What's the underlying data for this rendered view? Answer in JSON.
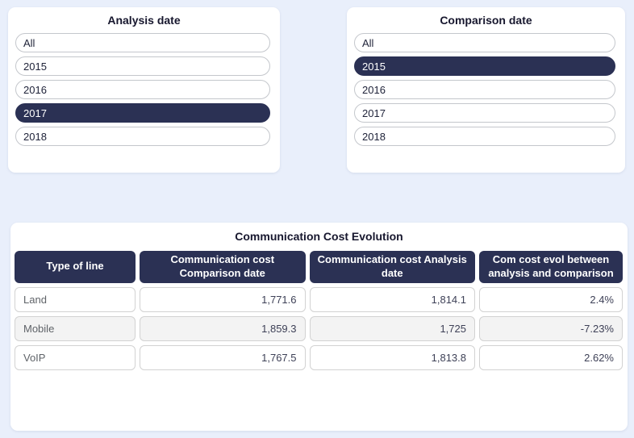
{
  "colors": {
    "page_background": "#e9effb",
    "card_background": "#ffffff",
    "accent_navy": "#2b3154",
    "selected_text": "#ffffff",
    "row_alt_background": "#f3f3f3",
    "cell_border": "#d2d2d2",
    "row_label_color": "#5f6368",
    "value_color": "#3e4157"
  },
  "filters": {
    "analysis": {
      "title": "Analysis date",
      "options": [
        {
          "label": "All",
          "selected": false
        },
        {
          "label": "2015",
          "selected": false
        },
        {
          "label": "2016",
          "selected": false
        },
        {
          "label": "2017",
          "selected": true
        },
        {
          "label": "2018",
          "selected": false
        }
      ]
    },
    "comparison": {
      "title": "Comparison date",
      "options": [
        {
          "label": "All",
          "selected": false
        },
        {
          "label": "2015",
          "selected": true
        },
        {
          "label": "2016",
          "selected": false
        },
        {
          "label": "2017",
          "selected": false
        },
        {
          "label": "2018",
          "selected": false
        }
      ]
    }
  },
  "table": {
    "title": "Communication Cost Evolution",
    "columns": [
      "Type of line",
      "Communication cost Comparison date",
      "Communication cost Analysis date",
      "Com cost evol between analysis and comparison"
    ],
    "rows": [
      [
        "Land",
        "1,771.6",
        "1,814.1",
        "2.4%"
      ],
      [
        "Mobile",
        "1,859.3",
        "1,725",
        "-7.23%"
      ],
      [
        "VoIP",
        "1,767.5",
        "1,813.8",
        "2.62%"
      ]
    ]
  },
  "chart_data": {
    "type": "table",
    "title": "Communication Cost Evolution",
    "columns": [
      "Type of line",
      "Communication cost Comparison date",
      "Communication cost Analysis date",
      "Com cost evol between analysis and comparison"
    ],
    "rows": [
      {
        "type_of_line": "Land",
        "comparison_cost": 1771.6,
        "analysis_cost": 1814.1,
        "evolution_pct": 2.4
      },
      {
        "type_of_line": "Mobile",
        "comparison_cost": 1859.3,
        "analysis_cost": 1725,
        "evolution_pct": -7.23
      },
      {
        "type_of_line": "VoIP",
        "comparison_cost": 1767.5,
        "analysis_cost": 1813.8,
        "evolution_pct": 2.62
      }
    ],
    "analysis_date_selected": "2017",
    "comparison_date_selected": "2015"
  }
}
